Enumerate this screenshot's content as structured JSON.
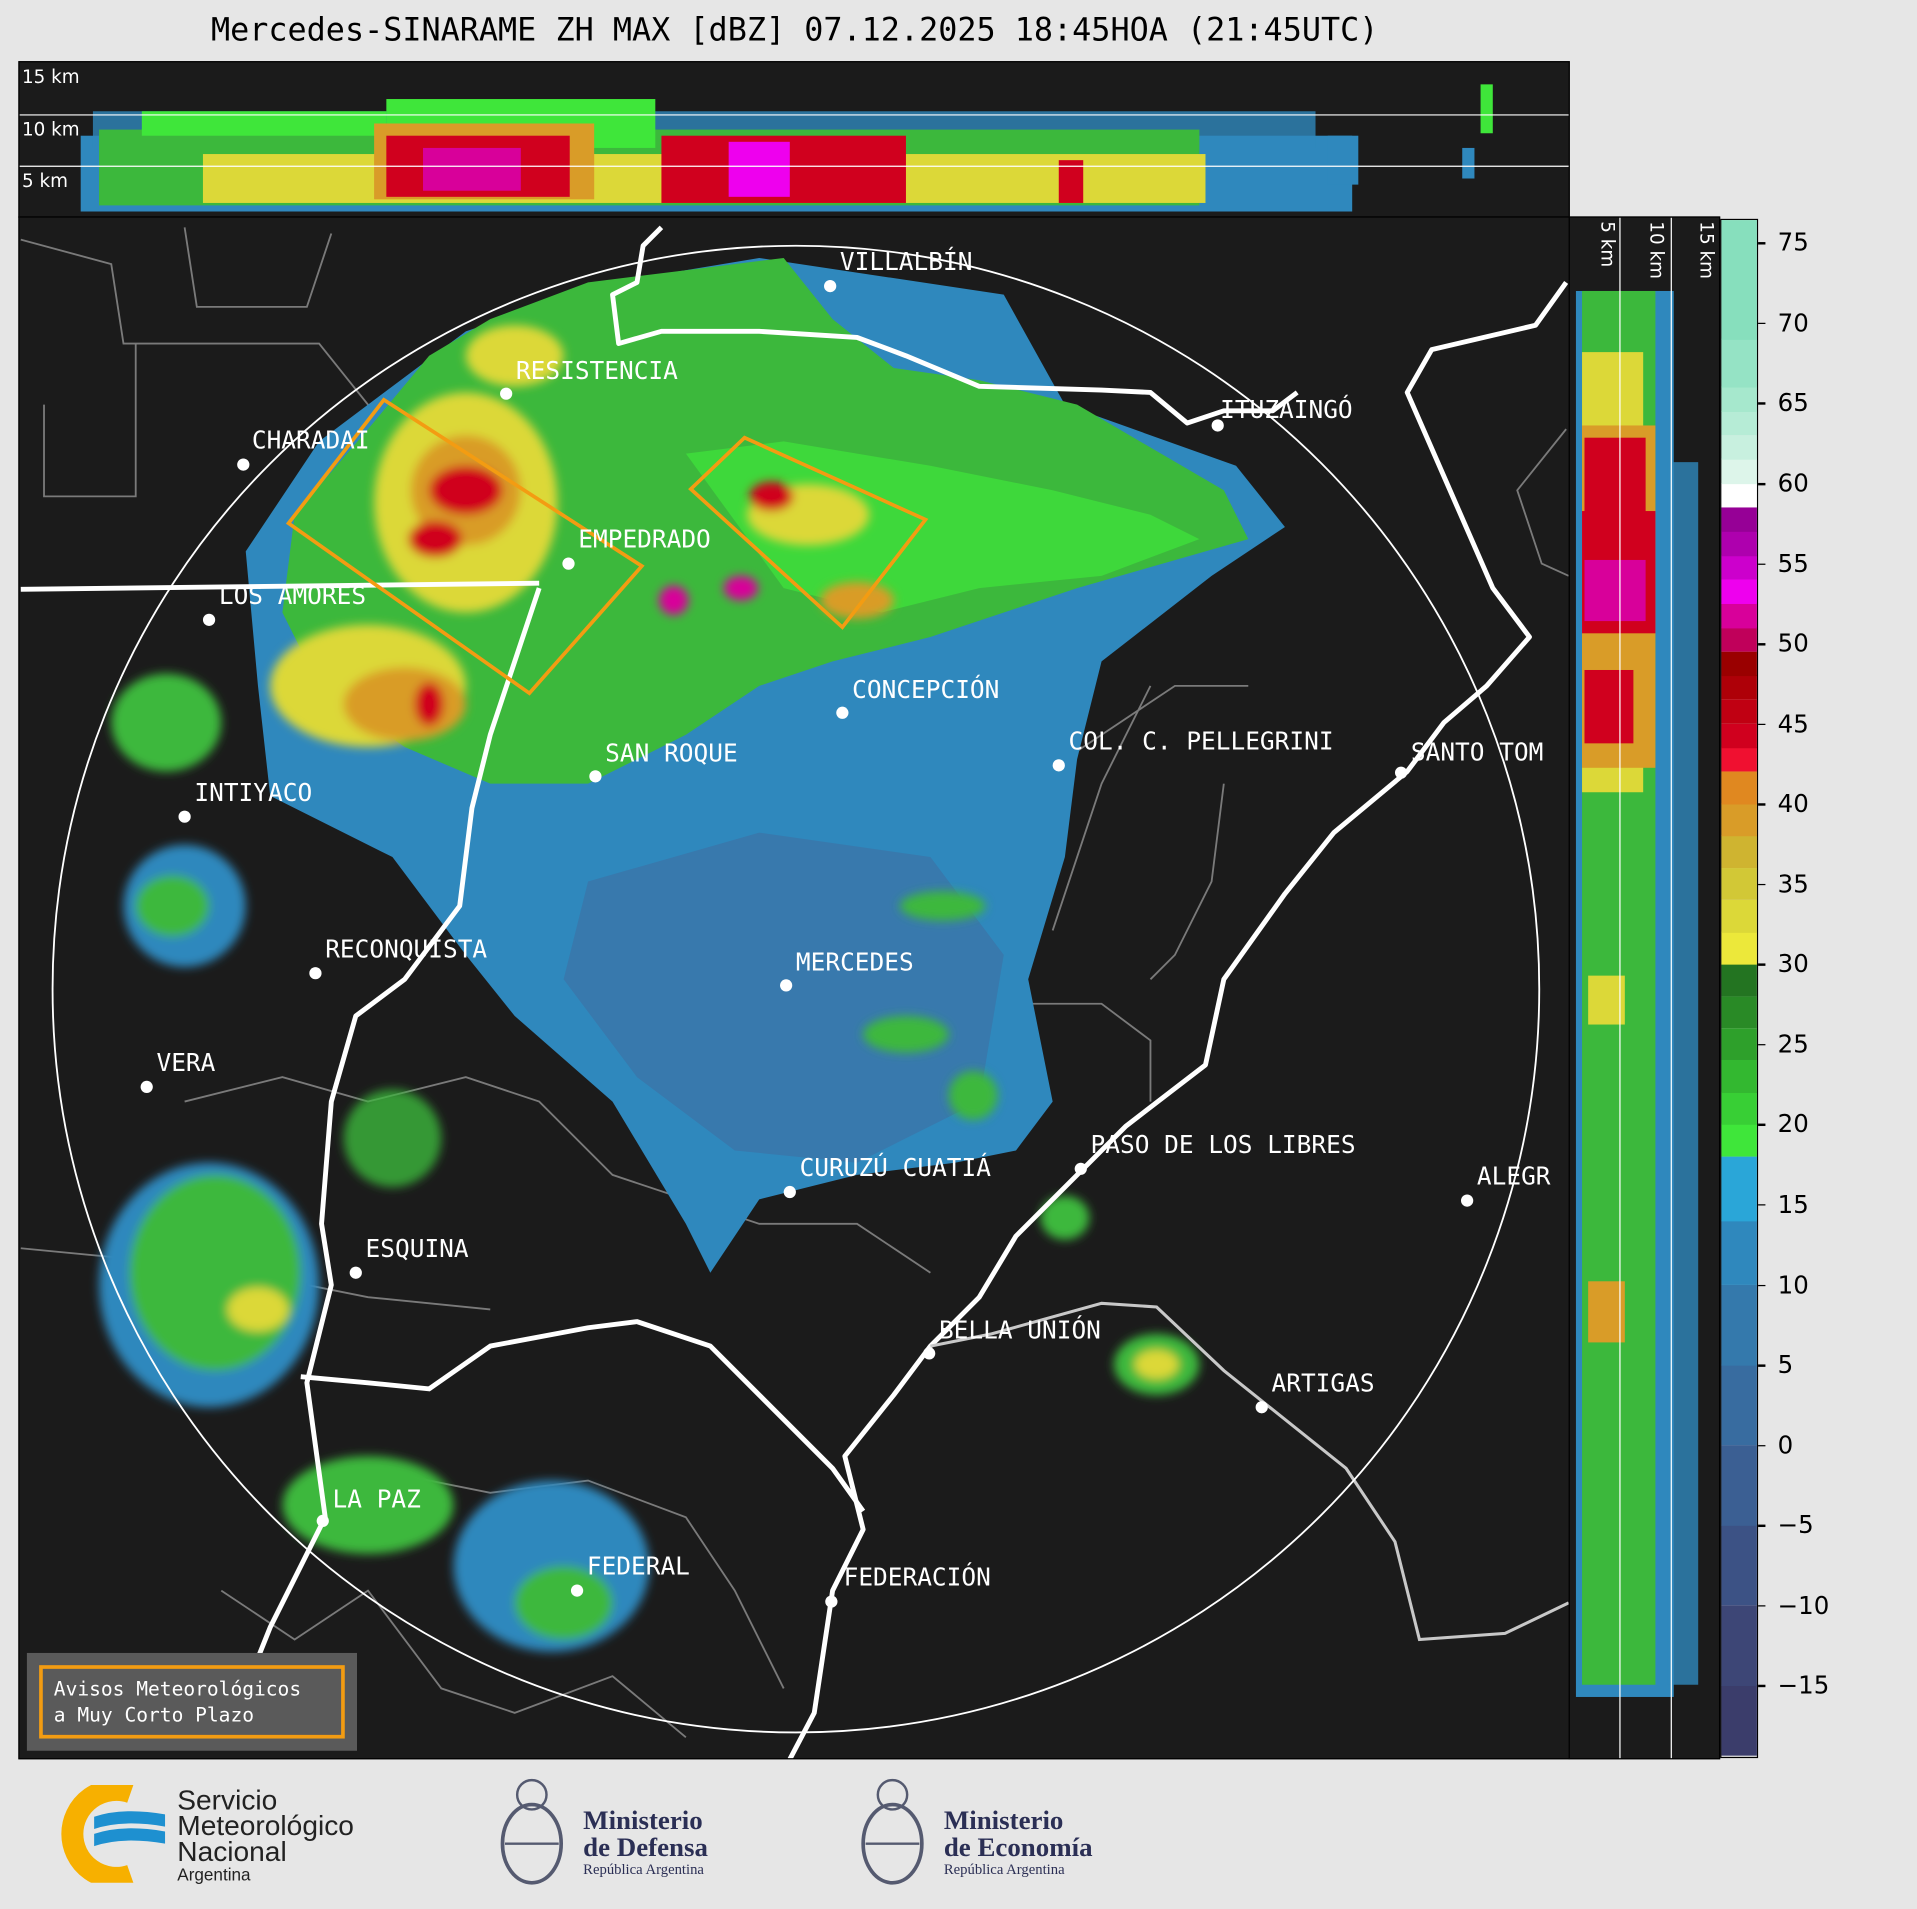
{
  "title": "Mercedes-SINARAME ZH MAX [dBZ] 07.12.2025 18:45HOA (21:45UTC)",
  "top_section": {
    "heights": [
      "15 km",
      "10 km",
      "5 km"
    ]
  },
  "side_section": {
    "heights": [
      "5 km",
      "10 km",
      "15 km"
    ]
  },
  "cities": [
    {
      "name": "VILLALBÍN"
    },
    {
      "name": "RESISTENCIA"
    },
    {
      "name": "CHARADAI"
    },
    {
      "name": "EMPEDRADO"
    },
    {
      "name": "LOS AMORES"
    },
    {
      "name": "CONCEPCIÓN"
    },
    {
      "name": "SAN ROQUE"
    },
    {
      "name": "COL. C. PELLEGRINI"
    },
    {
      "name": "SANTO TOM"
    },
    {
      "name": "ITUZAINGÓ"
    },
    {
      "name": "INTIYACO"
    },
    {
      "name": "RECONQUISTA"
    },
    {
      "name": "MERCEDES"
    },
    {
      "name": "VERA"
    },
    {
      "name": "PASO DE LOS LIBRES"
    },
    {
      "name": "CURUZÚ CUATIÁ"
    },
    {
      "name": "ALEGR"
    },
    {
      "name": "ESQUINA"
    },
    {
      "name": "BELLA UNIÓN"
    },
    {
      "name": "ARTIGAS"
    },
    {
      "name": "LA PAZ"
    },
    {
      "name": "FEDERAL"
    },
    {
      "name": "FEDERACIÓN"
    }
  ],
  "legend": {
    "line1": "Avisos Meteorológicos",
    "line2": "a Muy Corto Plazo",
    "color": "#f39c12"
  },
  "colorbar": {
    "unit": "dBZ",
    "range": [
      -19.4,
      76.4
    ],
    "ticks": [
      "75",
      "70",
      "65",
      "60",
      "55",
      "50",
      "45",
      "40",
      "35",
      "30",
      "25",
      "20",
      "15",
      "10",
      "5",
      "0",
      "−5",
      "−10",
      "−15"
    ],
    "bands": [
      [
        -20,
        -15,
        "#3b3d6b"
      ],
      [
        -15,
        -10,
        "#3d4676"
      ],
      [
        -10,
        -5,
        "#3c5285"
      ],
      [
        -5,
        0,
        "#3b5f93"
      ],
      [
        0,
        5,
        "#386ca0"
      ],
      [
        5,
        10,
        "#3479ac"
      ],
      [
        10,
        14,
        "#2f88bd"
      ],
      [
        14,
        18,
        "#2aa6d8"
      ],
      [
        18,
        20,
        "#3fe63a"
      ],
      [
        20,
        22,
        "#38cf35"
      ],
      [
        22,
        24,
        "#33b830"
      ],
      [
        24,
        26,
        "#2ea02b"
      ],
      [
        26,
        28,
        "#298a26"
      ],
      [
        28,
        30,
        "#237421"
      ],
      [
        30,
        32,
        "#ece83a"
      ],
      [
        32,
        34,
        "#dcd838"
      ],
      [
        34,
        36,
        "#d2c836"
      ],
      [
        36,
        38,
        "#cfb430"
      ],
      [
        38,
        40,
        "#d99c28"
      ],
      [
        40,
        42,
        "#e08820"
      ],
      [
        42,
        43.5,
        "#f01030"
      ],
      [
        43.5,
        45,
        "#d0001e"
      ],
      [
        45,
        46.5,
        "#c00012"
      ],
      [
        46.5,
        48,
        "#ae0008"
      ],
      [
        48,
        49.5,
        "#9a0000"
      ],
      [
        49.5,
        51,
        "#c0005a"
      ],
      [
        51,
        52.5,
        "#d8009a"
      ],
      [
        52.5,
        54,
        "#ee00ee"
      ],
      [
        54,
        55.5,
        "#cc00cc"
      ],
      [
        55.5,
        57,
        "#ae00ae"
      ],
      [
        57,
        58.5,
        "#960096"
      ],
      [
        58.5,
        60,
        "#ffffff"
      ],
      [
        60,
        61.5,
        "#ddf5ea"
      ],
      [
        61.5,
        63,
        "#c8f0df"
      ],
      [
        63,
        64.5,
        "#b6ecd6"
      ],
      [
        64.5,
        66,
        "#a6e8cd"
      ],
      [
        66,
        69,
        "#95e3c5"
      ],
      [
        69,
        77,
        "#87dfbd"
      ]
    ]
  },
  "logos": {
    "smn": {
      "line1": "Servicio",
      "line2": "Meteorológico",
      "line3": "Nacional",
      "line4": "Argentina"
    },
    "defensa": {
      "line1": "Ministerio",
      "line2": "de Defensa",
      "line3": "República Argentina"
    },
    "economia": {
      "line1": "Ministerio",
      "line2": "de Economía",
      "line3": "República Argentina"
    }
  }
}
